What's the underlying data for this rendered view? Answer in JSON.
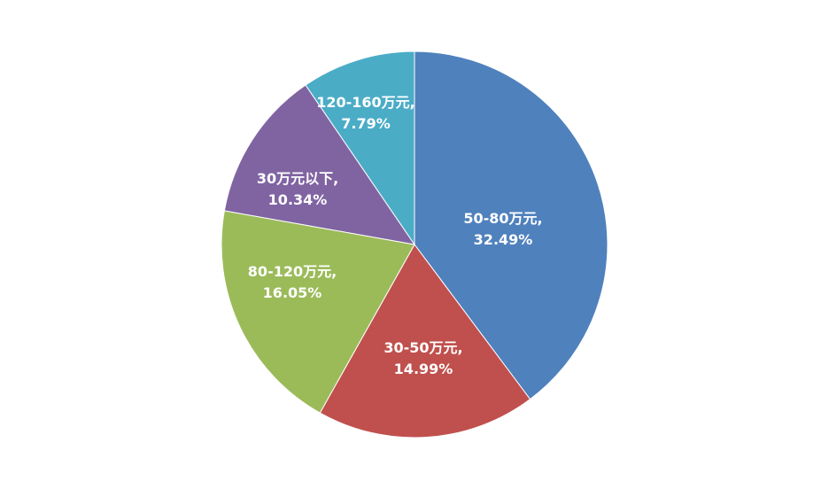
{
  "chart_data": {
    "type": "pie",
    "title": "",
    "start_angle_deg": 0,
    "direction": "clockwise",
    "slices": [
      {
        "label": "50-80万元",
        "value": 32.49,
        "value_text": "32.49%",
        "color": "#4F81BD"
      },
      {
        "label": "30-50万元",
        "value": 14.99,
        "value_text": "14.99%",
        "color": "#C0504D"
      },
      {
        "label": "80-120万元",
        "value": 16.05,
        "value_text": "16.05%",
        "color": "#9BBB59"
      },
      {
        "label": "30万元以下",
        "value": 10.34,
        "value_text": "10.34%",
        "color": "#8064A2"
      },
      {
        "label": "120-160万元",
        "value": 7.79,
        "value_text": "7.79%",
        "color": "#4BACC6"
      }
    ],
    "legend": "none",
    "data_label_separator": ","
  }
}
